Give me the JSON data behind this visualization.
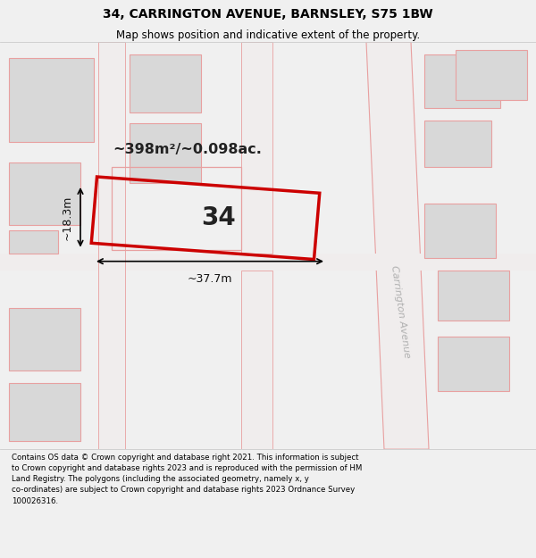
{
  "title_line1": "34, CARRINGTON AVENUE, BARNSLEY, S75 1BW",
  "title_line2": "Map shows position and indicative extent of the property.",
  "footer_text": "Contains OS data © Crown copyright and database right 2021. This information is subject to Crown copyright and database rights 2023 and is reproduced with the permission of HM Land Registry. The polygons (including the associated geometry, namely x, y co-ordinates) are subject to Crown copyright and database rights 2023 Ordnance Survey 100026316.",
  "bg_color": "#f0f0f0",
  "map_bg": "#f8f8f8",
  "property_label": "34",
  "area_label": "~398m²/~0.098ac.",
  "width_label": "~37.7m",
  "height_label": "~18.3m",
  "road_label": "Carrington Avenue",
  "plot_outline_color": "#cc0000",
  "road_outline_color": "#e8a0a0",
  "title_fontsize": 10,
  "subtitle_fontsize": 8.5,
  "footer_fontsize": 6.2
}
